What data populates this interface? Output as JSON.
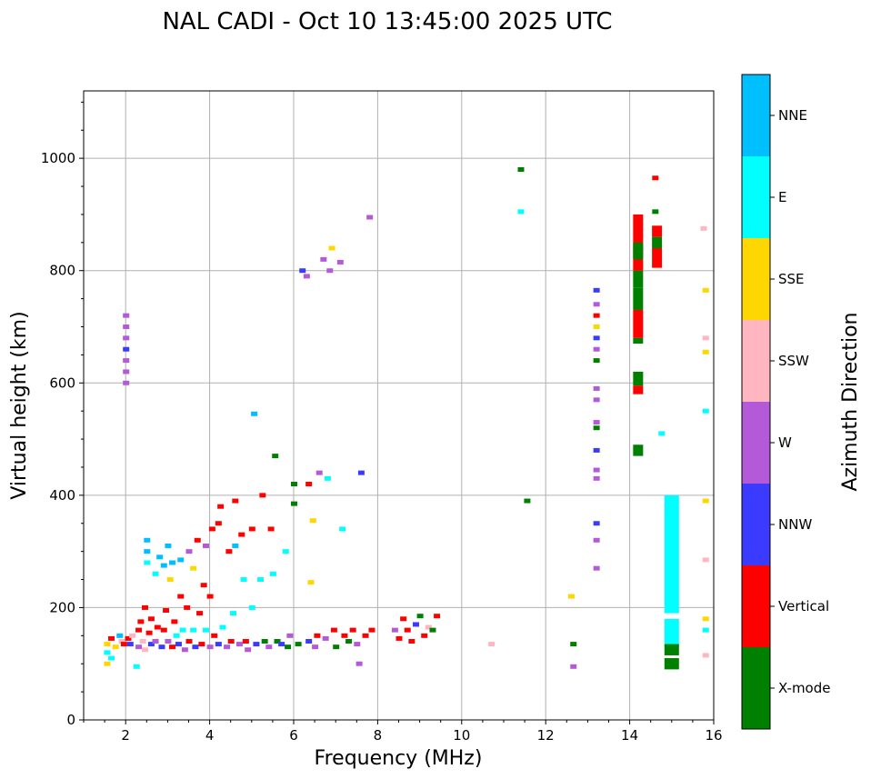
{
  "chart_data": {
    "type": "scatter",
    "title": "NAL CADI - Oct 10 13:45:00 2025 UTC",
    "xlabel": "Frequency (MHz)",
    "ylabel": "Virtual height (km)",
    "xlim": [
      1,
      16
    ],
    "ylim": [
      0,
      1120
    ],
    "xticks": [
      2,
      4,
      6,
      8,
      10,
      12,
      14,
      16
    ],
    "yticks": [
      0,
      200,
      400,
      600,
      800,
      1000
    ],
    "grid": true,
    "colorbar": {
      "title": "Azimuth Direction",
      "categories": [
        {
          "name": "X-mode",
          "color": "#008000"
        },
        {
          "name": "Vertical",
          "color": "#ff0000"
        },
        {
          "name": "NNW",
          "color": "#3b3bff"
        },
        {
          "name": "W",
          "color": "#b45ad8"
        },
        {
          "name": "SSW",
          "color": "#ffb6c1"
        },
        {
          "name": "SSE",
          "color": "#ffd700"
        },
        {
          "name": "E",
          "color": "#00ffff"
        },
        {
          "name": "NNE",
          "color": "#00bfff"
        }
      ]
    },
    "points": [
      [
        1.55,
        135,
        "SSE"
      ],
      [
        1.55,
        120,
        "E"
      ],
      [
        1.55,
        100,
        "SSE"
      ],
      [
        1.65,
        145,
        "Vertical"
      ],
      [
        1.65,
        110,
        "E"
      ],
      [
        1.75,
        130,
        "SSE"
      ],
      [
        1.85,
        150,
        "NNE"
      ],
      [
        1.9,
        140,
        "SSW"
      ],
      [
        1.95,
        135,
        "Vertical"
      ],
      [
        2.0,
        720,
        "W"
      ],
      [
        2.0,
        700,
        "W"
      ],
      [
        2.0,
        680,
        "W"
      ],
      [
        2.0,
        660,
        "NNW"
      ],
      [
        2.0,
        640,
        "W"
      ],
      [
        2.0,
        620,
        "W"
      ],
      [
        2.0,
        600,
        "W"
      ],
      [
        2.05,
        145,
        "Vertical"
      ],
      [
        2.1,
        135,
        "NNW"
      ],
      [
        2.15,
        150,
        "SSW"
      ],
      [
        2.25,
        95,
        "E"
      ],
      [
        2.3,
        160,
        "Vertical"
      ],
      [
        2.3,
        130,
        "W"
      ],
      [
        2.35,
        175,
        "Vertical"
      ],
      [
        2.4,
        140,
        "SSW"
      ],
      [
        2.45,
        125,
        "SSW"
      ],
      [
        2.45,
        200,
        "Vertical"
      ],
      [
        2.5,
        320,
        "NNE"
      ],
      [
        2.5,
        300,
        "NNE"
      ],
      [
        2.5,
        280,
        "E"
      ],
      [
        2.55,
        155,
        "Vertical"
      ],
      [
        2.6,
        135,
        "NNW"
      ],
      [
        2.6,
        180,
        "Vertical"
      ],
      [
        2.7,
        140,
        "W"
      ],
      [
        2.7,
        260,
        "E"
      ],
      [
        2.75,
        165,
        "Vertical"
      ],
      [
        2.8,
        290,
        "NNE"
      ],
      [
        2.85,
        130,
        "NNW"
      ],
      [
        2.9,
        275,
        "NNE"
      ],
      [
        2.9,
        160,
        "Vertical"
      ],
      [
        2.95,
        195,
        "Vertical"
      ],
      [
        3.0,
        140,
        "W"
      ],
      [
        3.0,
        310,
        "NNE"
      ],
      [
        3.05,
        250,
        "SSE"
      ],
      [
        3.1,
        130,
        "Vertical"
      ],
      [
        3.1,
        280,
        "NNE"
      ],
      [
        3.15,
        175,
        "Vertical"
      ],
      [
        3.2,
        150,
        "E"
      ],
      [
        3.25,
        135,
        "NNW"
      ],
      [
        3.3,
        285,
        "NNE"
      ],
      [
        3.3,
        220,
        "Vertical"
      ],
      [
        3.35,
        160,
        "E"
      ],
      [
        3.4,
        125,
        "W"
      ],
      [
        3.45,
        200,
        "Vertical"
      ],
      [
        3.5,
        140,
        "Vertical"
      ],
      [
        3.5,
        300,
        "W"
      ],
      [
        3.6,
        160,
        "E"
      ],
      [
        3.6,
        270,
        "SSE"
      ],
      [
        3.65,
        130,
        "NNW"
      ],
      [
        3.7,
        320,
        "Vertical"
      ],
      [
        3.75,
        190,
        "Vertical"
      ],
      [
        3.8,
        135,
        "Vertical"
      ],
      [
        3.85,
        240,
        "Vertical"
      ],
      [
        3.9,
        160,
        "E"
      ],
      [
        3.9,
        310,
        "W"
      ],
      [
        4.0,
        130,
        "W"
      ],
      [
        4.0,
        220,
        "Vertical"
      ],
      [
        4.05,
        340,
        "Vertical"
      ],
      [
        4.1,
        150,
        "Vertical"
      ],
      [
        4.2,
        350,
        "Vertical"
      ],
      [
        4.2,
        135,
        "NNW"
      ],
      [
        4.25,
        380,
        "Vertical"
      ],
      [
        4.3,
        165,
        "E"
      ],
      [
        4.4,
        130,
        "W"
      ],
      [
        4.45,
        300,
        "Vertical"
      ],
      [
        4.5,
        140,
        "Vertical"
      ],
      [
        4.55,
        190,
        "E"
      ],
      [
        4.6,
        390,
        "Vertical"
      ],
      [
        4.6,
        310,
        "NNE"
      ],
      [
        4.7,
        135,
        "W"
      ],
      [
        4.75,
        330,
        "Vertical"
      ],
      [
        4.8,
        250,
        "E"
      ],
      [
        4.85,
        140,
        "Vertical"
      ],
      [
        4.9,
        125,
        "W"
      ],
      [
        5.0,
        340,
        "Vertical"
      ],
      [
        5.0,
        200,
        "E"
      ],
      [
        5.05,
        545,
        "NNE"
      ],
      [
        5.1,
        135,
        "NNW"
      ],
      [
        5.2,
        250,
        "E"
      ],
      [
        5.25,
        400,
        "Vertical"
      ],
      [
        5.3,
        140,
        "X-mode"
      ],
      [
        5.4,
        130,
        "W"
      ],
      [
        5.45,
        340,
        "Vertical"
      ],
      [
        5.5,
        260,
        "E"
      ],
      [
        5.55,
        470,
        "X-mode"
      ],
      [
        5.6,
        140,
        "X-mode"
      ],
      [
        5.7,
        135,
        "NNW"
      ],
      [
        5.8,
        300,
        "E"
      ],
      [
        5.85,
        130,
        "X-mode"
      ],
      [
        5.9,
        150,
        "W"
      ],
      [
        6.0,
        420,
        "X-mode"
      ],
      [
        6.0,
        385,
        "X-mode"
      ],
      [
        6.1,
        135,
        "X-mode"
      ],
      [
        6.2,
        800,
        "NNW"
      ],
      [
        6.3,
        790,
        "W"
      ],
      [
        6.35,
        420,
        "Vertical"
      ],
      [
        6.35,
        140,
        "NNW"
      ],
      [
        6.4,
        245,
        "SSE"
      ],
      [
        6.45,
        355,
        "SSE"
      ],
      [
        6.5,
        130,
        "W"
      ],
      [
        6.55,
        150,
        "Vertical"
      ],
      [
        6.6,
        440,
        "W"
      ],
      [
        6.7,
        820,
        "W"
      ],
      [
        6.75,
        145,
        "W"
      ],
      [
        6.8,
        430,
        "E"
      ],
      [
        6.85,
        800,
        "W"
      ],
      [
        6.9,
        840,
        "SSE"
      ],
      [
        6.95,
        160,
        "Vertical"
      ],
      [
        7.0,
        130,
        "X-mode"
      ],
      [
        7.1,
        815,
        "W"
      ],
      [
        7.15,
        340,
        "E"
      ],
      [
        7.2,
        150,
        "Vertical"
      ],
      [
        7.3,
        140,
        "X-mode"
      ],
      [
        7.4,
        160,
        "Vertical"
      ],
      [
        7.5,
        135,
        "W"
      ],
      [
        7.55,
        100,
        "W"
      ],
      [
        7.6,
        440,
        "NNW"
      ],
      [
        7.7,
        150,
        "Vertical"
      ],
      [
        7.8,
        895,
        "W"
      ],
      [
        7.85,
        160,
        "Vertical"
      ],
      [
        8.4,
        160,
        "W"
      ],
      [
        8.5,
        145,
        "Vertical"
      ],
      [
        8.6,
        180,
        "Vertical"
      ],
      [
        8.7,
        160,
        "Vertical"
      ],
      [
        8.8,
        140,
        "Vertical"
      ],
      [
        8.9,
        170,
        "NNW"
      ],
      [
        9.0,
        185,
        "X-mode"
      ],
      [
        9.1,
        150,
        "Vertical"
      ],
      [
        9.2,
        165,
        "SSW"
      ],
      [
        9.3,
        160,
        "X-mode"
      ],
      [
        9.4,
        185,
        "Vertical"
      ],
      [
        10.7,
        135,
        "SSW"
      ],
      [
        11.4,
        980,
        "X-mode"
      ],
      [
        11.4,
        905,
        "E"
      ],
      [
        11.55,
        390,
        "X-mode"
      ],
      [
        12.6,
        220,
        "SSE"
      ],
      [
        12.65,
        135,
        "X-mode"
      ],
      [
        12.65,
        95,
        "W"
      ],
      [
        13.2,
        765,
        "NNW"
      ],
      [
        13.2,
        740,
        "W"
      ],
      [
        13.2,
        720,
        "Vertical"
      ],
      [
        13.2,
        700,
        "SSE"
      ],
      [
        13.2,
        680,
        "NNW"
      ],
      [
        13.2,
        660,
        "W"
      ],
      [
        13.2,
        640,
        "X-mode"
      ],
      [
        13.2,
        590,
        "W"
      ],
      [
        13.2,
        570,
        "W"
      ],
      [
        13.2,
        530,
        "W"
      ],
      [
        13.2,
        520,
        "X-mode"
      ],
      [
        13.2,
        480,
        "NNW"
      ],
      [
        13.2,
        445,
        "W"
      ],
      [
        13.2,
        430,
        "W"
      ],
      [
        13.2,
        350,
        "NNW"
      ],
      [
        13.2,
        320,
        "W"
      ],
      [
        13.2,
        270,
        "W"
      ],
      [
        14.6,
        965,
        "Vertical"
      ],
      [
        14.6,
        905,
        "X-mode"
      ],
      [
        14.75,
        510,
        "E"
      ],
      [
        15.75,
        875,
        "SSW"
      ],
      [
        15.8,
        765,
        "SSE"
      ],
      [
        15.8,
        680,
        "SSW"
      ],
      [
        15.8,
        655,
        "SSE"
      ],
      [
        15.8,
        550,
        "E"
      ],
      [
        15.8,
        390,
        "SSE"
      ],
      [
        15.8,
        285,
        "SSW"
      ],
      [
        15.8,
        180,
        "SSE"
      ],
      [
        15.8,
        160,
        "E"
      ],
      [
        15.8,
        115,
        "SSW"
      ]
    ],
    "bars": [
      [
        14.2,
        900,
        800,
        "Vertical"
      ],
      [
        14.2,
        800,
        770,
        "X-mode"
      ],
      [
        14.2,
        770,
        730,
        "X-mode"
      ],
      [
        14.2,
        730,
        680,
        "Vertical"
      ],
      [
        14.2,
        680,
        670,
        "X-mode"
      ],
      [
        14.2,
        620,
        595,
        "X-mode"
      ],
      [
        14.2,
        595,
        580,
        "Vertical"
      ],
      [
        14.2,
        490,
        470,
        "X-mode"
      ],
      [
        14.2,
        850,
        820,
        "X-mode"
      ],
      [
        14.65,
        880,
        860,
        "Vertical"
      ],
      [
        14.65,
        860,
        840,
        "X-mode"
      ],
      [
        14.65,
        840,
        805,
        "Vertical"
      ],
      [
        15.0,
        400,
        190,
        "E"
      ],
      [
        15.0,
        180,
        130,
        "E"
      ],
      [
        15.0,
        135,
        115,
        "X-mode"
      ],
      [
        15.0,
        110,
        90,
        "X-mode"
      ]
    ]
  }
}
